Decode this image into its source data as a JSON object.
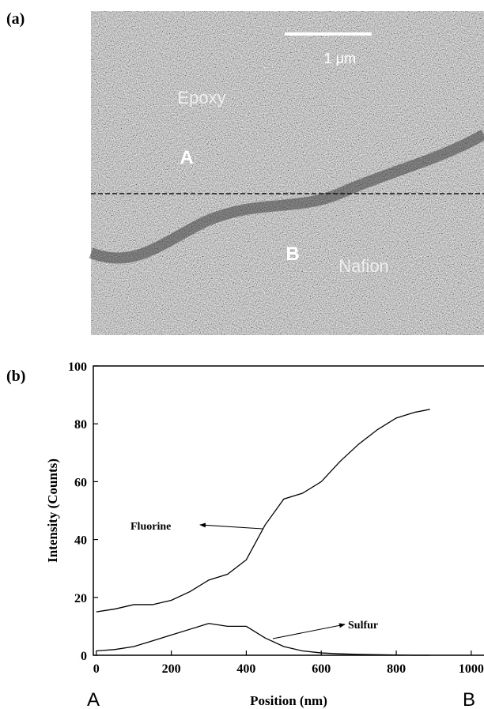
{
  "panel_a": {
    "label": "(a)",
    "scale_bar": "1 μm",
    "region_top": "Epoxy",
    "point_a": "A",
    "point_b": "B",
    "region_bottom": "Nafion"
  },
  "chart_data": {
    "type": "line",
    "panel_label": "(b)",
    "x_label": "Position (nm)",
    "y_label": "Intensity (Counts)",
    "endpoints": [
      "A",
      "B"
    ],
    "x": [
      0,
      50,
      100,
      150,
      200,
      250,
      300,
      350,
      400,
      450,
      500,
      550,
      600,
      650,
      700,
      750,
      800,
      850,
      890
    ],
    "series": [
      {
        "name": "Fluorine",
        "color": "#000000",
        "values": [
          15,
          16,
          17.5,
          17.5,
          19,
          22,
          26,
          28,
          33,
          45,
          54,
          56,
          60,
          67,
          73,
          78,
          82,
          84,
          85
        ]
      },
      {
        "name": "Sulfur",
        "color": "#000000",
        "values": [
          1.5,
          2,
          3,
          5,
          7,
          9,
          11,
          10,
          10,
          6,
          3,
          1.5,
          0.8,
          0.5,
          0.3,
          0.2,
          0.1,
          0,
          0
        ]
      }
    ],
    "xlim": [
      -8,
      1034
    ],
    "ylim": [
      0,
      100
    ],
    "xticks": [
      0,
      200,
      400,
      600,
      800,
      1000
    ],
    "yticks": [
      0,
      20,
      40,
      60,
      80,
      100
    ]
  }
}
